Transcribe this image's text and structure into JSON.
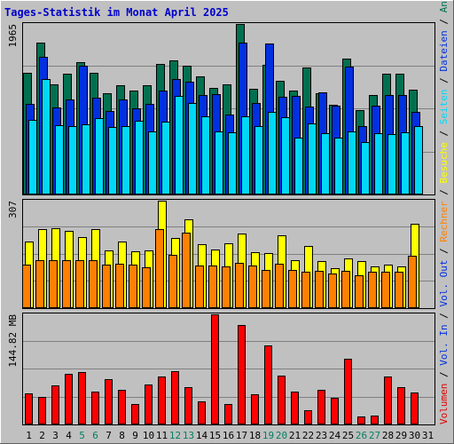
{
  "chart_data": {
    "title": "Tages-Statistik im Monat April 2025",
    "type": "bar",
    "categories": [
      "1",
      "2",
      "3",
      "4",
      "5",
      "6",
      "7",
      "8",
      "9",
      "10",
      "11",
      "12",
      "13",
      "14",
      "15",
      "16",
      "17",
      "18",
      "19",
      "20",
      "21",
      "22",
      "23",
      "24",
      "25",
      "26",
      "27",
      "28",
      "29",
      "30",
      "31"
    ],
    "weekend_days": [
      "5",
      "6",
      "12",
      "13",
      "19",
      "20",
      "26",
      "27"
    ],
    "panels": [
      {
        "id": "top",
        "ymax_label": "1965",
        "ymax": 1965,
        "series": [
          {
            "name": "Anfragen",
            "color": "#007050",
            "values": [
              1400,
              1750,
              1270,
              1390,
              1520,
              1400,
              1170,
              1260,
              1200,
              1260,
              1500,
              1550,
              1480,
              1360,
              1230,
              1270,
              1965,
              1220,
              1490,
              1310,
              1200,
              1460,
              1170,
              1030,
              1570,
              970,
              1150,
              1390,
              1390,
              1210,
              0
            ]
          },
          {
            "name": "Dateien",
            "color": "#0030e0",
            "values": [
              1040,
              1590,
              1000,
              1090,
              1480,
              1120,
              960,
              1100,
              990,
              1040,
              1200,
              1330,
              1300,
              1150,
              1160,
              920,
              1750,
              1050,
              1740,
              1130,
              1140,
              1010,
              1180,
              1020,
              1470,
              790,
              1020,
              1150,
              1150,
              950,
              0
            ]
          },
          {
            "name": "Seiten",
            "color": "#00d8f8",
            "values": [
              860,
              1330,
              800,
              790,
              810,
              880,
              780,
              790,
              850,
              730,
              840,
              1140,
              1050,
              900,
              730,
              720,
              900,
              790,
              950,
              890,
              660,
              820,
              710,
              660,
              730,
              600,
              710,
              700,
              720,
              790,
              0
            ]
          }
        ]
      },
      {
        "id": "middle",
        "ymax_label": "307",
        "ymax": 307,
        "series": [
          {
            "name": "Besuche",
            "color": "#ffff00",
            "values": [
              190,
              225,
              228,
              220,
              202,
              225,
              165,
              190,
              163,
              165,
              307,
              200,
              253,
              183,
              168,
              186,
              213,
              160,
              157,
              208,
              136,
              178,
              135,
              113,
              143,
              134,
              118,
              125,
              118,
              240,
              0
            ]
          },
          {
            "name": "Rechner",
            "color": "#ff8000",
            "values": [
              124,
              138,
              137,
              137,
              136,
              136,
              124,
              127,
              124,
              116,
              225,
              152,
              215,
              123,
              123,
              119,
              129,
              122,
              108,
              128,
              109,
              105,
              107,
              99,
              106,
              95,
              105,
              103,
              104,
              149,
              0
            ]
          }
        ]
      },
      {
        "id": "bottom",
        "ymax_label": "144.82 MB",
        "ymax": 144.82,
        "series": [
          {
            "name": "Volumen",
            "color": "#ff0000",
            "values": [
              41,
              36,
              51,
              67,
              69,
              43,
              59,
              46,
              27,
              52,
              63,
              70,
              49,
              30,
              144.82,
              27,
              131,
              40,
              104,
              64,
              43,
              19,
              45,
              35,
              86,
              11,
              12,
              63,
              49,
              42,
              0
            ]
          }
        ]
      }
    ],
    "right_labels": [
      {
        "text": "Volumen",
        "color": "#e00000"
      },
      {
        "text": " / ",
        "color": "#000000"
      },
      {
        "text": "Vol. In",
        "color": "#0030e0"
      },
      {
        "text": " / ",
        "color": "#000000"
      },
      {
        "text": "Vol. Out",
        "color": "#0030e0"
      },
      {
        "text": " / ",
        "color": "#000000"
      },
      {
        "text": "Rechner",
        "color": "#ff8000"
      },
      {
        "text": " / ",
        "color": "#000000"
      },
      {
        "text": "Besuche",
        "color": "#ffff00"
      },
      {
        "text": " / ",
        "color": "#000000"
      },
      {
        "text": "Seiten",
        "color": "#00d8f8"
      },
      {
        "text": " / ",
        "color": "#000000"
      },
      {
        "text": "Dateien",
        "color": "#0030e0"
      },
      {
        "text": " / ",
        "color": "#000000"
      },
      {
        "text": "Anfragen",
        "color": "#007050"
      }
    ]
  }
}
